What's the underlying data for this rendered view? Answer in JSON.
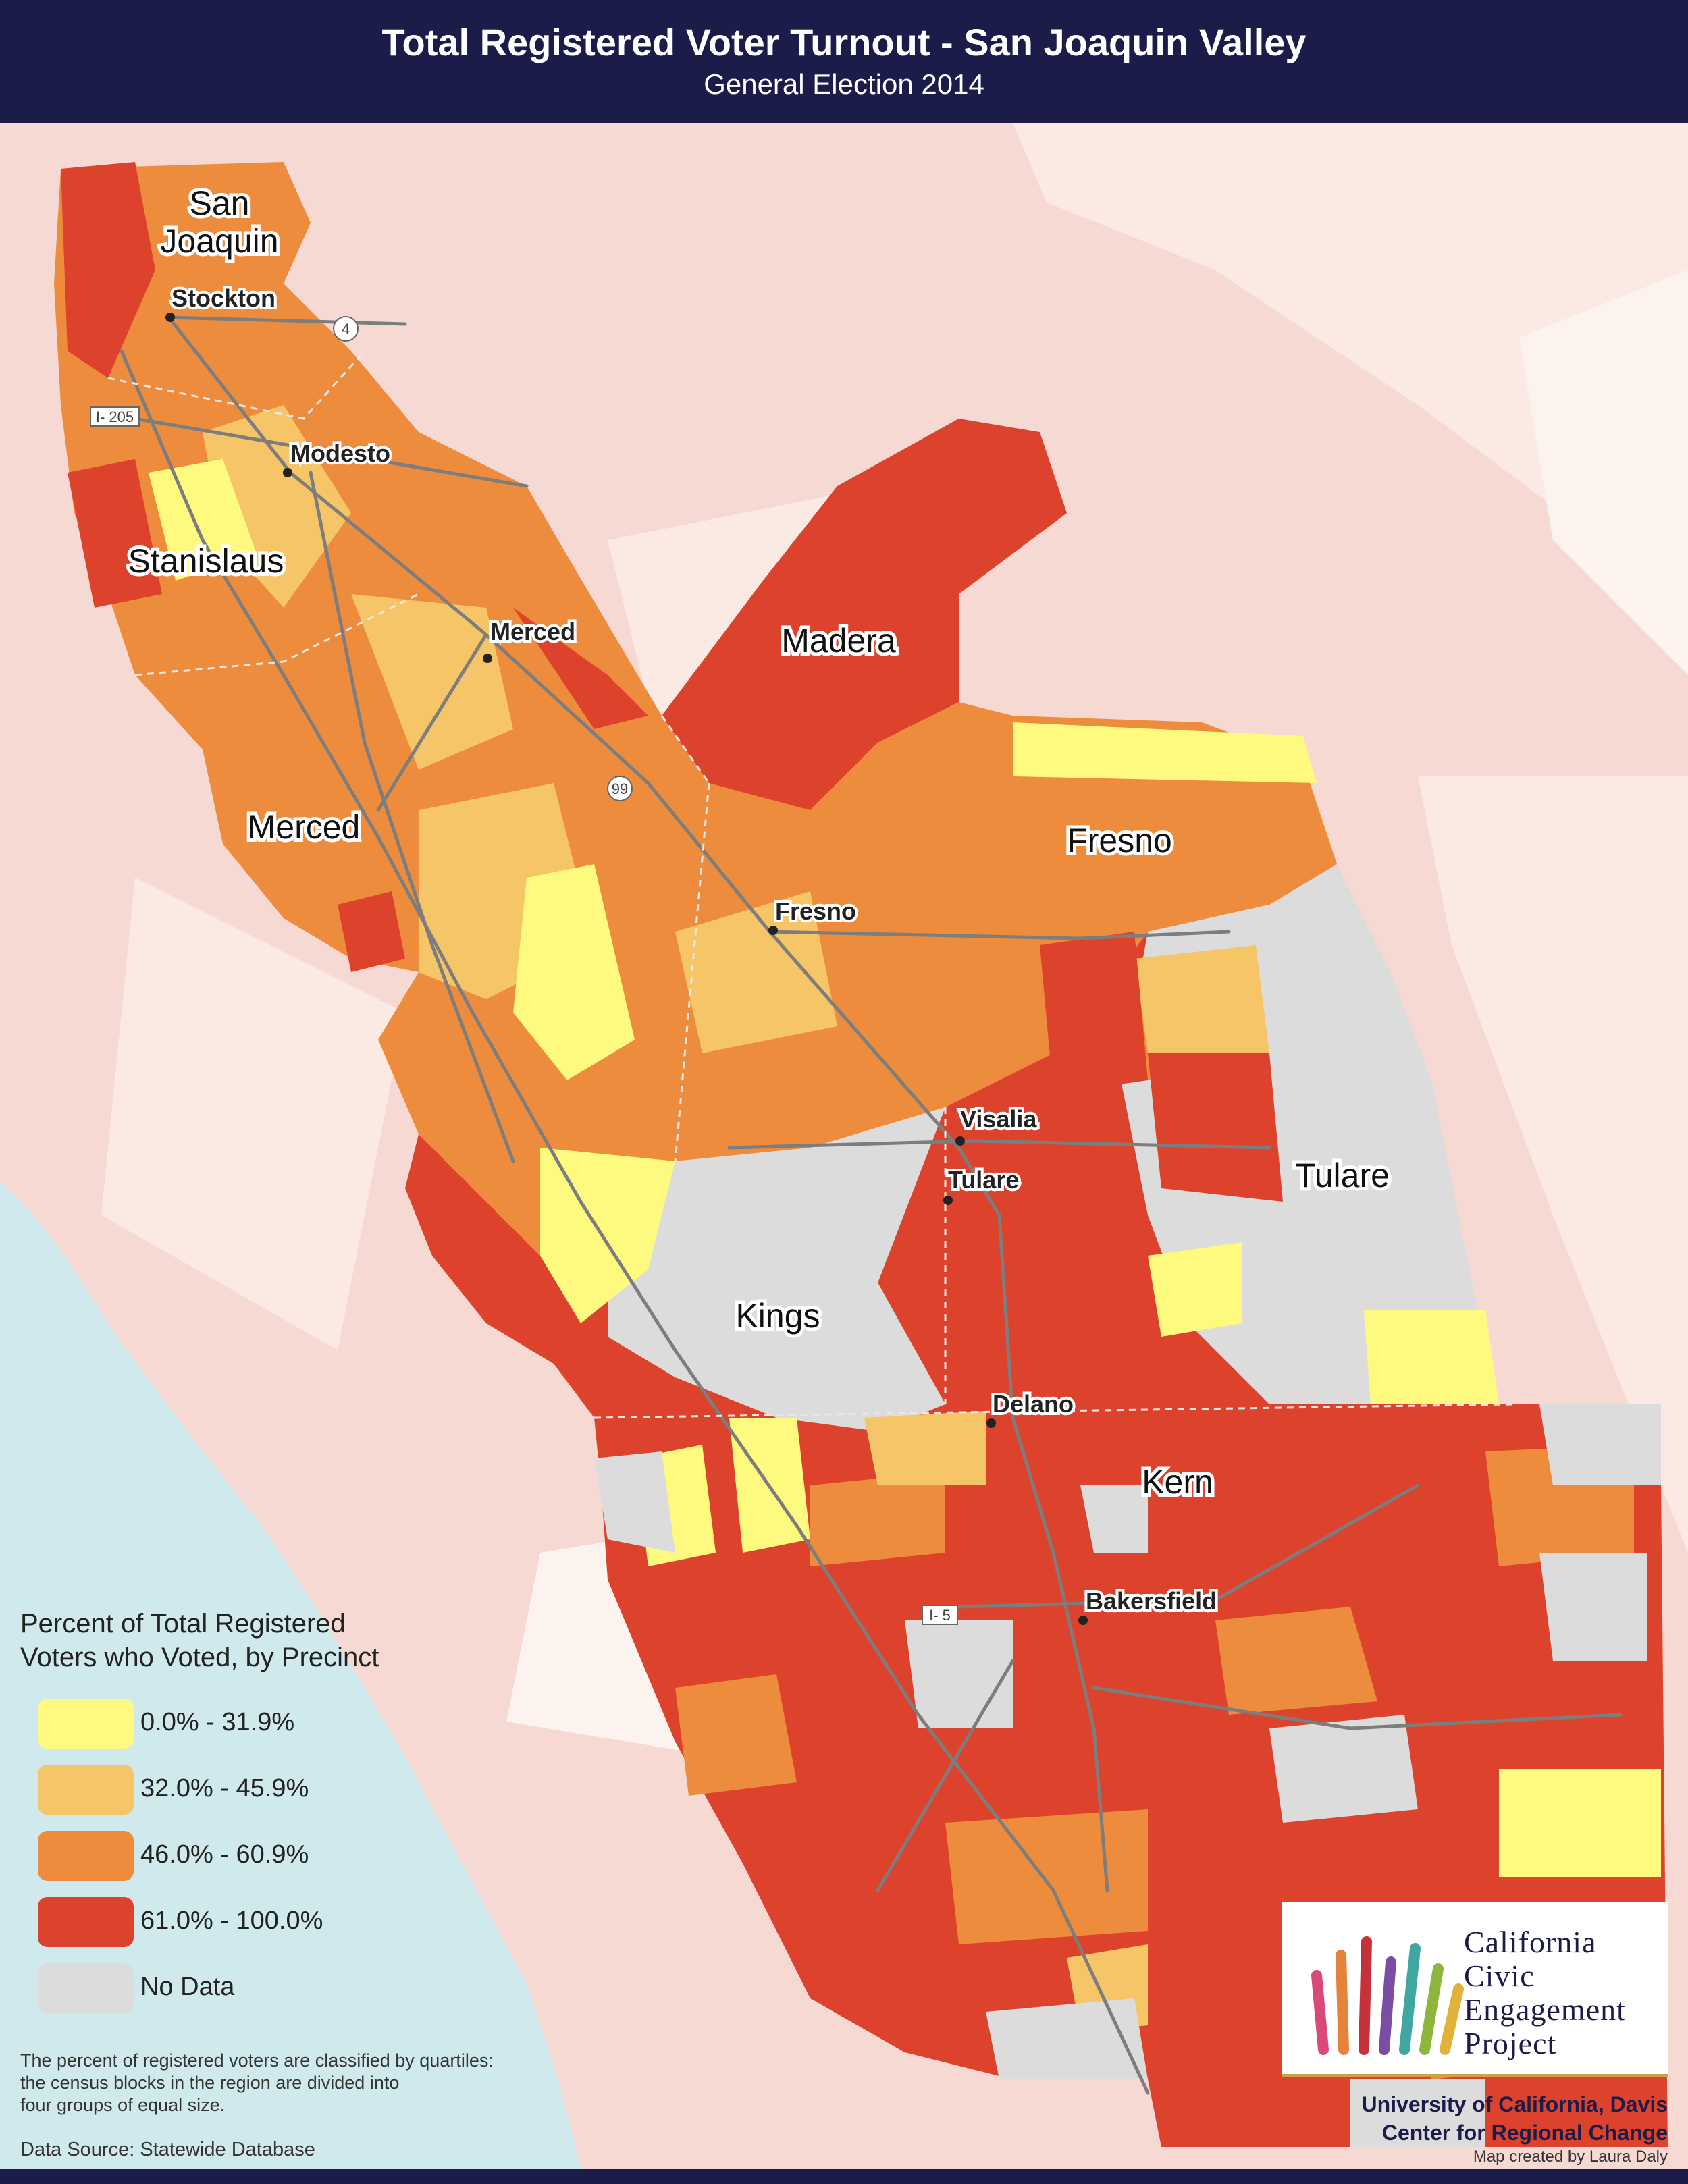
{
  "header": {
    "title": "Total Registered Voter Turnout - San Joaquin Valley",
    "subtitle": "General Election 2014"
  },
  "map": {
    "counties": [
      "San Joaquin",
      "Stanislaus",
      "Merced",
      "Madera",
      "Fresno",
      "Kings",
      "Tulare",
      "Kern"
    ],
    "cities": [
      "Stockton",
      "Modesto",
      "Merced",
      "Fresno",
      "Visalia",
      "Tulare",
      "Delano",
      "Bakersfield"
    ],
    "highways": [
      "4",
      "I- 205",
      "99",
      "I- 5"
    ],
    "colors": {
      "q1": "#fefa7f",
      "q2": "#f5c567",
      "q3": "#ec8c3c",
      "q4": "#dd432c",
      "nodata": "#dcdcdc",
      "background": "#f6d9d3",
      "ocean": "#cfe9ec",
      "roads": "#808080"
    }
  },
  "legend": {
    "title_line1": "Percent of Total Registered",
    "title_line2": "Voters who Voted, by Precinct",
    "items": [
      {
        "label": "0.0% - 31.9%",
        "color": "#fefa7f"
      },
      {
        "label": "32.0% - 45.9%",
        "color": "#f5c567"
      },
      {
        "label": "46.0% - 60.9%",
        "color": "#ec8c3c"
      },
      {
        "label": "61.0% - 100.0%",
        "color": "#dd432c"
      },
      {
        "label": "No Data",
        "color": "#dcdcdc"
      }
    ],
    "note_line1": "The percent of registered voters are classified by quartiles:",
    "note_line2": "the census blocks in the region are divided into",
    "note_line3": "four groups of equal size.",
    "data_source": "Data Source: Statewide Database"
  },
  "logo": {
    "line1": "California",
    "line2": "Civic",
    "line3": "Engagement",
    "line4": "Project"
  },
  "credits": {
    "line1": "University of California, Davis",
    "line2": "Center for Regional Change",
    "line3": "Map created by Laura Daly"
  }
}
